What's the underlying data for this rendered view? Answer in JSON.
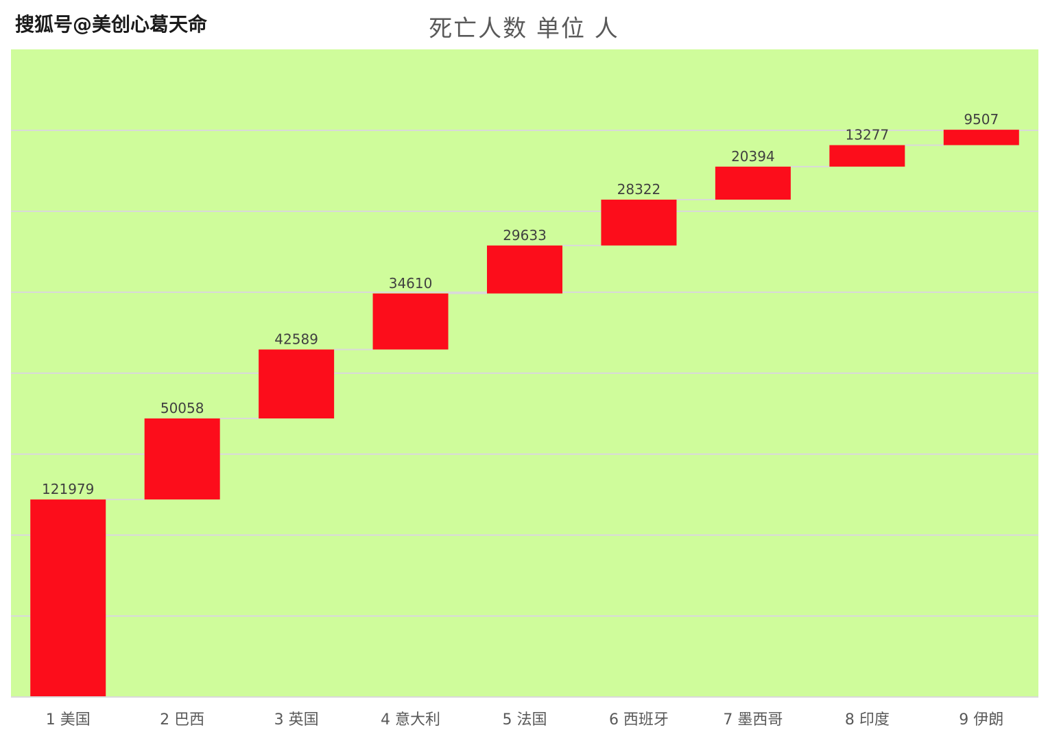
{
  "watermark": "搜狐号@美创心葛天命",
  "chart_data": {
    "type": "bar",
    "subtype": "waterfall",
    "title": "死亡人数 单位 人",
    "categories": [
      "1 美国",
      "2 巴西",
      "3 英国",
      "4 意大利",
      "5 法国",
      "6 西班牙",
      "7 墨西哥",
      "8 印度",
      "9 伊朗"
    ],
    "values": [
      121979,
      50058,
      42589,
      34610,
      29633,
      28322,
      20394,
      13277,
      9507
    ],
    "ylim": [
      0,
      400000
    ],
    "grid": true,
    "colors": {
      "plot_background": "#cffc9b",
      "bar": "#fc0d1b",
      "gridline": "#d9d9d9",
      "connector": "#d9d9d9"
    }
  }
}
